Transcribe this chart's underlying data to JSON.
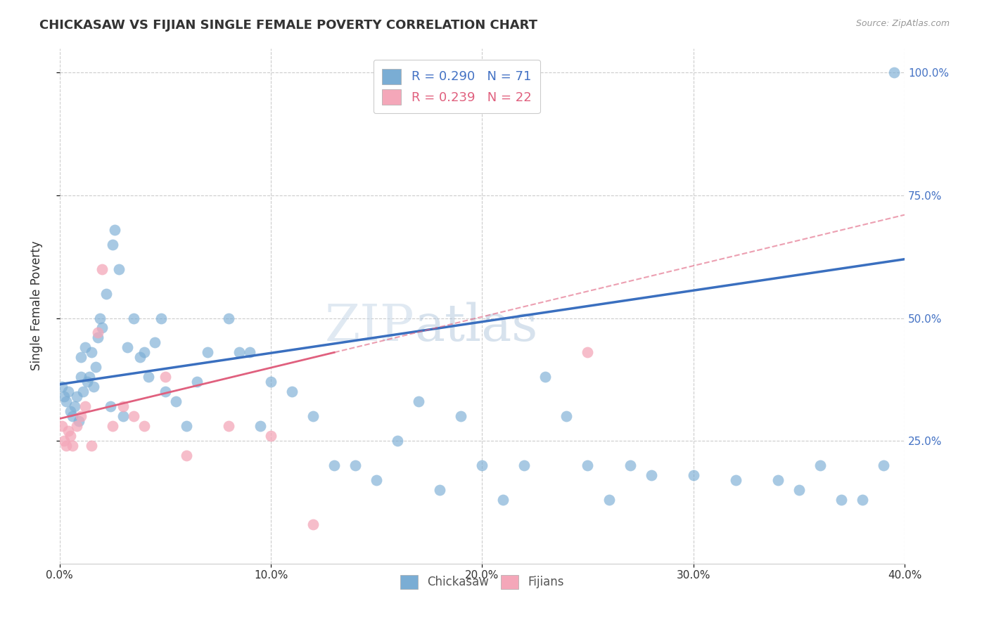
{
  "title": "CHICKASAW VS FIJIAN SINGLE FEMALE POVERTY CORRELATION CHART",
  "source": "Source: ZipAtlas.com",
  "ylabel": "Single Female Poverty",
  "chickasaw_R": 0.29,
  "chickasaw_N": 71,
  "fijian_R": 0.239,
  "fijian_N": 22,
  "chickasaw_color": "#7aadd4",
  "chickasaw_line_color": "#3a6fbf",
  "fijian_color": "#f4a7b9",
  "fijian_line_color": "#e0607e",
  "chickasaw_x": [
    0.001,
    0.002,
    0.003,
    0.004,
    0.005,
    0.006,
    0.007,
    0.008,
    0.009,
    0.01,
    0.01,
    0.011,
    0.012,
    0.013,
    0.014,
    0.015,
    0.016,
    0.017,
    0.018,
    0.019,
    0.02,
    0.022,
    0.024,
    0.025,
    0.026,
    0.028,
    0.03,
    0.032,
    0.035,
    0.038,
    0.04,
    0.042,
    0.045,
    0.048,
    0.05,
    0.055,
    0.06,
    0.065,
    0.07,
    0.08,
    0.085,
    0.09,
    0.095,
    0.1,
    0.11,
    0.12,
    0.13,
    0.14,
    0.15,
    0.16,
    0.17,
    0.18,
    0.19,
    0.2,
    0.21,
    0.22,
    0.23,
    0.24,
    0.25,
    0.26,
    0.27,
    0.28,
    0.3,
    0.32,
    0.34,
    0.35,
    0.36,
    0.37,
    0.38,
    0.39,
    0.395
  ],
  "chickasaw_y": [
    0.36,
    0.34,
    0.33,
    0.35,
    0.31,
    0.3,
    0.32,
    0.34,
    0.29,
    0.38,
    0.42,
    0.35,
    0.44,
    0.37,
    0.38,
    0.43,
    0.36,
    0.4,
    0.46,
    0.5,
    0.48,
    0.55,
    0.32,
    0.65,
    0.68,
    0.6,
    0.3,
    0.44,
    0.5,
    0.42,
    0.43,
    0.38,
    0.45,
    0.5,
    0.35,
    0.33,
    0.28,
    0.37,
    0.43,
    0.5,
    0.43,
    0.43,
    0.28,
    0.37,
    0.35,
    0.3,
    0.2,
    0.2,
    0.17,
    0.25,
    0.33,
    0.15,
    0.3,
    0.2,
    0.13,
    0.2,
    0.38,
    0.3,
    0.2,
    0.13,
    0.2,
    0.18,
    0.18,
    0.17,
    0.17,
    0.15,
    0.2,
    0.13,
    0.13,
    0.2,
    1.0
  ],
  "fijian_x": [
    0.001,
    0.002,
    0.003,
    0.004,
    0.005,
    0.006,
    0.008,
    0.01,
    0.012,
    0.015,
    0.018,
    0.02,
    0.025,
    0.03,
    0.035,
    0.04,
    0.05,
    0.06,
    0.08,
    0.1,
    0.12,
    0.25
  ],
  "fijian_y": [
    0.28,
    0.25,
    0.24,
    0.27,
    0.26,
    0.24,
    0.28,
    0.3,
    0.32,
    0.24,
    0.47,
    0.6,
    0.28,
    0.32,
    0.3,
    0.28,
    0.38,
    0.22,
    0.28,
    0.26,
    0.08,
    0.43
  ],
  "fijian_line_end_x": 0.13,
  "xlim": [
    0.0,
    0.4
  ],
  "ylim": [
    0.0,
    1.05
  ],
  "x_tick_vals": [
    0.0,
    0.1,
    0.2,
    0.3,
    0.4
  ],
  "x_tick_labels": [
    "0.0%",
    "10.0%",
    "20.0%",
    "30.0%",
    "40.0%"
  ],
  "y_tick_vals": [
    0.25,
    0.5,
    0.75,
    1.0
  ],
  "y_tick_labels": [
    "25.0%",
    "50.0%",
    "75.0%",
    "100.0%"
  ],
  "background_color": "#ffffff",
  "grid_color": "#cccccc",
  "title_fontsize": 13,
  "source_fontsize": 9,
  "tick_fontsize": 11,
  "ylabel_fontsize": 12
}
